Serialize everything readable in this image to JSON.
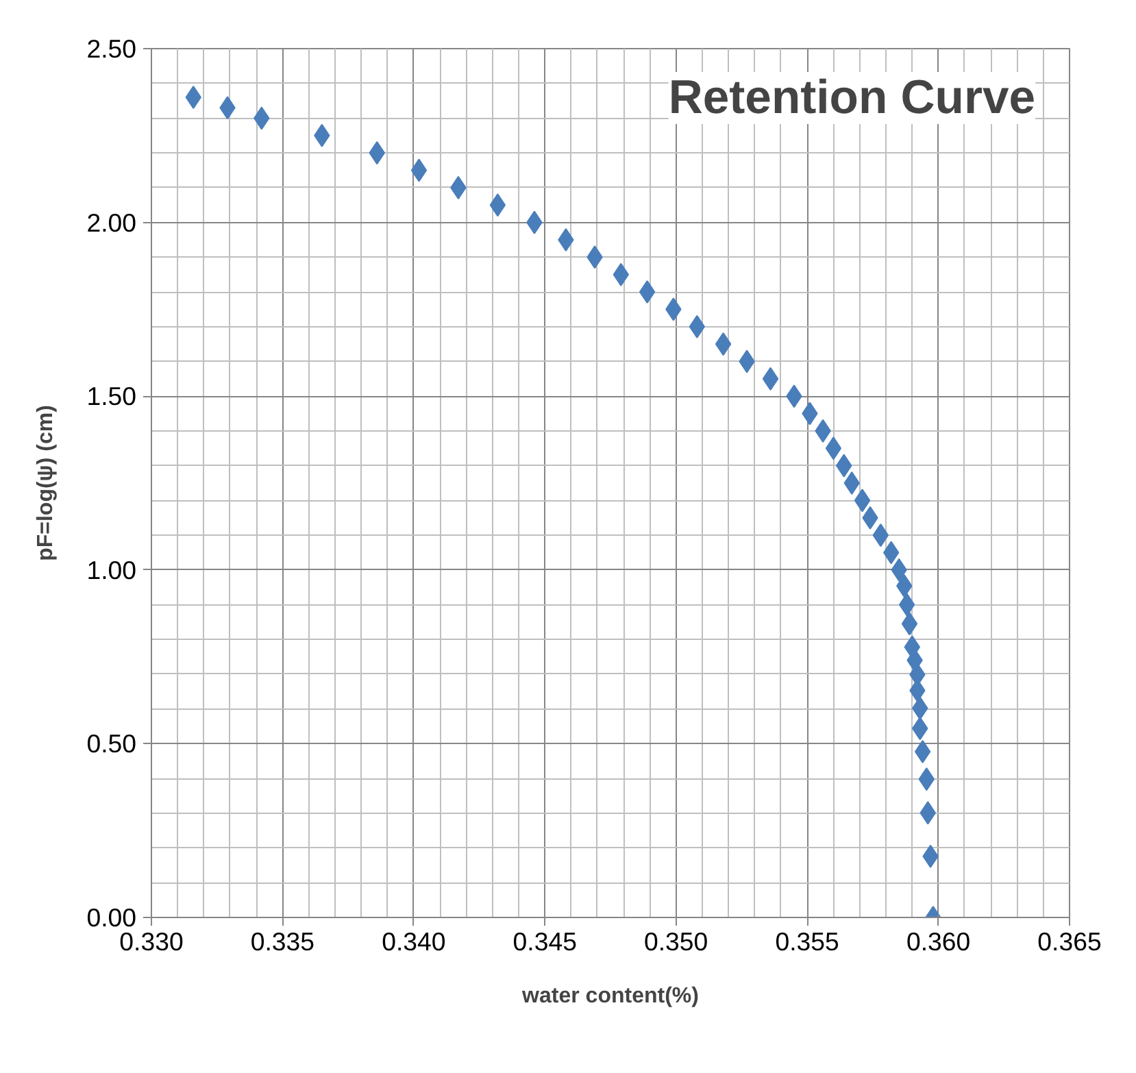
{
  "chart_data": {
    "type": "scatter",
    "title": "Retention Curve",
    "xlabel": "water content(%)",
    "ylabel": "pF=log(ψ) (cm)",
    "xlim": [
      0.33,
      0.365
    ],
    "ylim": [
      0,
      2.5
    ],
    "xticks": [
      {
        "value": 0.33,
        "label": "0.330"
      },
      {
        "value": 0.331,
        "label": null
      },
      {
        "value": 0.332,
        "label": null
      },
      {
        "value": 0.333,
        "label": null
      },
      {
        "value": 0.334,
        "label": null
      },
      {
        "value": 0.335,
        "label": "0.335"
      },
      {
        "value": 0.336,
        "label": null
      },
      {
        "value": 0.337,
        "label": null
      },
      {
        "value": 0.338,
        "label": null
      },
      {
        "value": 0.339,
        "label": null
      },
      {
        "value": 0.34,
        "label": "0.340"
      },
      {
        "value": 0.341,
        "label": null
      },
      {
        "value": 0.342,
        "label": null
      },
      {
        "value": 0.343,
        "label": null
      },
      {
        "value": 0.344,
        "label": null
      },
      {
        "value": 0.345,
        "label": "0.345"
      },
      {
        "value": 0.346,
        "label": null
      },
      {
        "value": 0.347,
        "label": null
      },
      {
        "value": 0.348,
        "label": null
      },
      {
        "value": 0.349,
        "label": null
      },
      {
        "value": 0.35,
        "label": "0.350"
      },
      {
        "value": 0.351,
        "label": null
      },
      {
        "value": 0.352,
        "label": null
      },
      {
        "value": 0.353,
        "label": null
      },
      {
        "value": 0.354,
        "label": null
      },
      {
        "value": 0.355,
        "label": "0.355"
      },
      {
        "value": 0.356,
        "label": null
      },
      {
        "value": 0.357,
        "label": null
      },
      {
        "value": 0.358,
        "label": null
      },
      {
        "value": 0.359,
        "label": null
      },
      {
        "value": 0.36,
        "label": "0.360"
      },
      {
        "value": 0.361,
        "label": null
      },
      {
        "value": 0.362,
        "label": null
      },
      {
        "value": 0.363,
        "label": null
      },
      {
        "value": 0.364,
        "label": null
      },
      {
        "value": 0.365,
        "label": "0.365"
      }
    ],
    "yticks": [
      {
        "value": 0,
        "label": "0.00"
      },
      {
        "value": 0.1,
        "label": null
      },
      {
        "value": 0.2,
        "label": null
      },
      {
        "value": 0.3,
        "label": null
      },
      {
        "value": 0.4,
        "label": null
      },
      {
        "value": 0.5,
        "label": "0.50"
      },
      {
        "value": 0.6,
        "label": null
      },
      {
        "value": 0.7,
        "label": null
      },
      {
        "value": 0.8,
        "label": null
      },
      {
        "value": 0.9,
        "label": null
      },
      {
        "value": 1.0,
        "label": "1.00"
      },
      {
        "value": 1.1,
        "label": null
      },
      {
        "value": 1.2,
        "label": null
      },
      {
        "value": 1.3,
        "label": null
      },
      {
        "value": 1.4,
        "label": null
      },
      {
        "value": 1.5,
        "label": "1.50"
      },
      {
        "value": 1.6,
        "label": null
      },
      {
        "value": 1.7,
        "label": null
      },
      {
        "value": 1.8,
        "label": null
      },
      {
        "value": 1.9,
        "label": null
      },
      {
        "value": 2.0,
        "label": "2.00"
      },
      {
        "value": 2.1,
        "label": null
      },
      {
        "value": 2.2,
        "label": null
      },
      {
        "value": 2.3,
        "label": null
      },
      {
        "value": 2.4,
        "label": null
      },
      {
        "value": 2.5,
        "label": "2.50"
      }
    ],
    "grid": true,
    "marker": "diamond",
    "series": [
      {
        "color": "#4a7ebb",
        "x": [
          0.3598,
          0.3597,
          0.3596,
          0.35955,
          0.3594,
          0.3593,
          0.3593,
          0.3592,
          0.3592,
          0.3591,
          0.359,
          0.3589,
          0.3588,
          0.3587,
          0.3585,
          0.3582,
          0.3578,
          0.3574,
          0.3571,
          0.3567,
          0.3564,
          0.356,
          0.3556,
          0.3551,
          0.3545,
          0.3536,
          0.3527,
          0.3518,
          0.3508,
          0.3499,
          0.3489,
          0.3479,
          0.3469,
          0.3458,
          0.3446,
          0.3432,
          0.3417,
          0.3402,
          0.3386,
          0.3365,
          0.3342,
          0.3329,
          0.3316
        ],
        "values": [
          0,
          0.176,
          0.301,
          0.398,
          0.477,
          0.544,
          0.602,
          0.653,
          0.699,
          0.74,
          0.778,
          0.845,
          0.9,
          0.954,
          1.0,
          1.05,
          1.1,
          1.15,
          1.2,
          1.25,
          1.3,
          1.35,
          1.4,
          1.45,
          1.5,
          1.55,
          1.6,
          1.65,
          1.7,
          1.75,
          1.8,
          1.85,
          1.9,
          1.95,
          2.0,
          2.05,
          2.1,
          2.15,
          2.2,
          2.25,
          2.3,
          2.33,
          2.36
        ]
      }
    ]
  }
}
